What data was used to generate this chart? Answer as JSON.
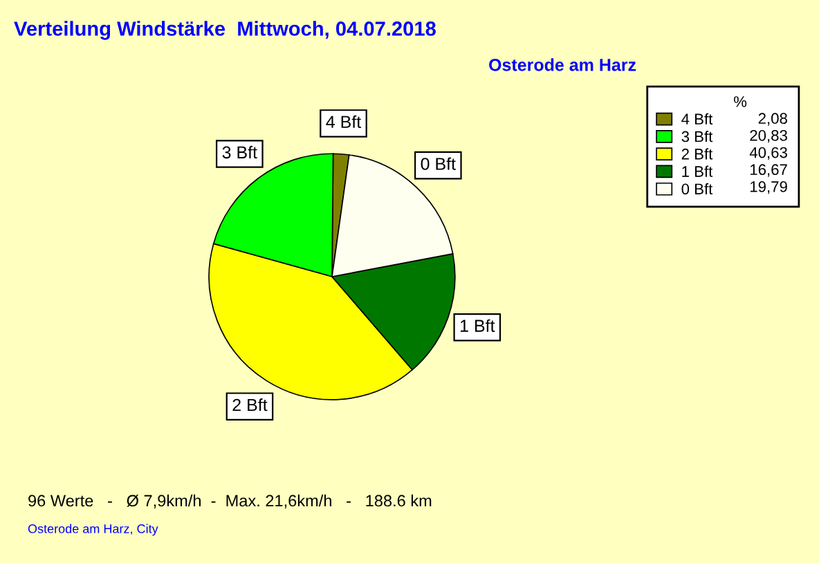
{
  "chart_data": {
    "type": "pie",
    "title": "Verteilung Windstärke  Mittwoch, 04.07.2018",
    "subtitle": "Osterode am Harz",
    "categories": [
      "4 Bft",
      "3 Bft",
      "2 Bft",
      "1 Bft",
      "0 Bft"
    ],
    "values": [
      2.08,
      20.83,
      40.63,
      16.67,
      19.79
    ],
    "value_labels": [
      "2,08",
      "20,83",
      "40,63",
      "16,67",
      "19,79"
    ],
    "colors": [
      "#808000",
      "#00ff00",
      "#ffff00",
      "#007800",
      "#fffff0"
    ],
    "legend": "top right",
    "legend_title": "%",
    "annotations": [
      "96 Werte   -   Ø 7,9km/h  -  Max. 21,6km/h   -   188.6 km",
      "Osterode am Harz, City"
    ]
  }
}
